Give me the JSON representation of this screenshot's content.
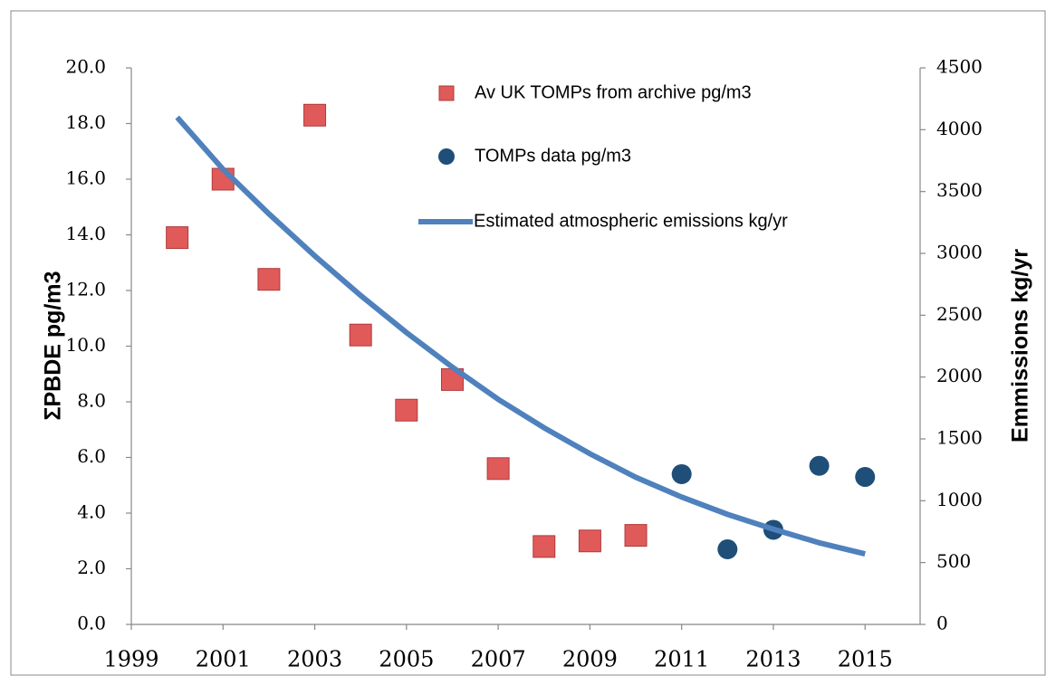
{
  "chart_data": {
    "type": "scatter",
    "y_label": "ΣPBDE pg/m3",
    "y2_label": "Emmissions kg/yr",
    "xlim": [
      1999,
      2016.2
    ],
    "xticks": [
      1999,
      2001,
      2003,
      2005,
      2007,
      2009,
      2011,
      2013,
      2015
    ],
    "ylim": [
      0,
      20
    ],
    "yticks": [
      {
        "value": 0,
        "label": "0.0"
      },
      {
        "value": 2,
        "label": "2.0"
      },
      {
        "value": 4,
        "label": "4.0"
      },
      {
        "value": 6,
        "label": "6.0"
      },
      {
        "value": 8,
        "label": "8.0"
      },
      {
        "value": 10,
        "label": "10.0"
      },
      {
        "value": 12,
        "label": "12.0"
      },
      {
        "value": 14,
        "label": "14.0"
      },
      {
        "value": 16,
        "label": "16.0"
      },
      {
        "value": 18,
        "label": "18.0"
      },
      {
        "value": 20,
        "label": "20.0"
      }
    ],
    "y2lim": [
      0,
      4500
    ],
    "y2ticks": [
      0,
      500,
      1000,
      1500,
      2000,
      2500,
      3000,
      3500,
      4000,
      4500
    ],
    "series": [
      {
        "name": "Av UK TOMPs from archive pg/m3",
        "color": "#e05a5a",
        "marker": "square",
        "x": [
          2000,
          2001,
          2002,
          2003,
          2004,
          2005,
          2006,
          2007,
          2008,
          2009,
          2010
        ],
        "values": [
          13.9,
          16.0,
          12.4,
          18.3,
          10.4,
          7.7,
          8.8,
          5.6,
          2.8,
          3.0,
          3.2
        ]
      },
      {
        "name": "TOMPs data pg/m3",
        "color": "#1f4e79",
        "marker": "circle",
        "x": [
          2011,
          2012,
          2013,
          2014,
          2015
        ],
        "values": [
          5.4,
          2.7,
          3.4,
          5.7,
          5.3
        ]
      },
      {
        "name": "Estimated atmospheric emissions kg/yr",
        "color": "#4f81bd",
        "marker": "line",
        "axis": "y2",
        "x": [
          2000,
          2001,
          2002,
          2003,
          2004,
          2005,
          2006,
          2007,
          2008,
          2009,
          2010,
          2011,
          2012,
          2013,
          2014,
          2015
        ],
        "values": [
          4100,
          3680,
          3320,
          2980,
          2660,
          2360,
          2080,
          1820,
          1590,
          1380,
          1190,
          1030,
          890,
          770,
          660,
          570
        ]
      }
    ]
  }
}
